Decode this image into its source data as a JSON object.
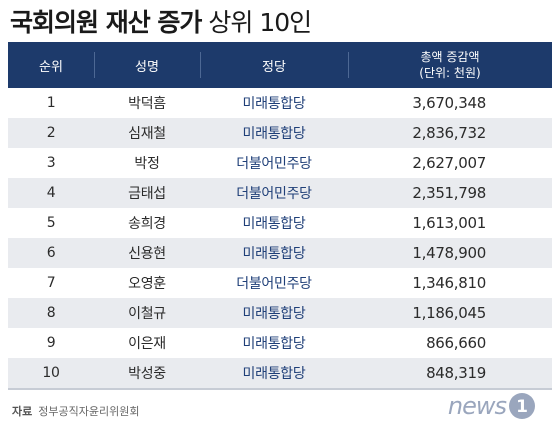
{
  "title": {
    "bold": "국회의원 재산 증가",
    "light": " 상위 10인"
  },
  "table": {
    "headers": {
      "rank": "순위",
      "name": "성명",
      "party": "정당",
      "amount_line1": "총액 증감액",
      "amount_line2": "(단위: 천원)"
    },
    "rows": [
      {
        "rank": "1",
        "name": "박덕흠",
        "party": "미래통합당",
        "amount": "3,670,348"
      },
      {
        "rank": "2",
        "name": "심재철",
        "party": "미래통합당",
        "amount": "2,836,732"
      },
      {
        "rank": "3",
        "name": "박정",
        "party": "더불어민주당",
        "amount": "2,627,007"
      },
      {
        "rank": "4",
        "name": "금태섭",
        "party": "더불어민주당",
        "amount": "2,351,798"
      },
      {
        "rank": "5",
        "name": "송희경",
        "party": "미래통합당",
        "amount": "1,613,001"
      },
      {
        "rank": "6",
        "name": "신용현",
        "party": "미래통합당",
        "amount": "1,478,900"
      },
      {
        "rank": "7",
        "name": "오영훈",
        "party": "더불어민주당",
        "amount": "1,346,810"
      },
      {
        "rank": "8",
        "name": "이철규",
        "party": "미래통합당",
        "amount": "1,186,045"
      },
      {
        "rank": "9",
        "name": "이은재",
        "party": "미래통합당",
        "amount": "866,660"
      },
      {
        "rank": "10",
        "name": "박성중",
        "party": "미래통합당",
        "amount": "848,319"
      }
    ]
  },
  "source": {
    "label": "자료",
    "text": "정부공직자윤리위원회"
  },
  "logo": {
    "word": "news",
    "digit": "1",
    "icon": "news1-logo"
  },
  "colors": {
    "header_bg": "#1d3a6b",
    "stripe": "#e9ebef",
    "party_text": "#1f3f78",
    "logo_gray": "#9aa6bd"
  }
}
